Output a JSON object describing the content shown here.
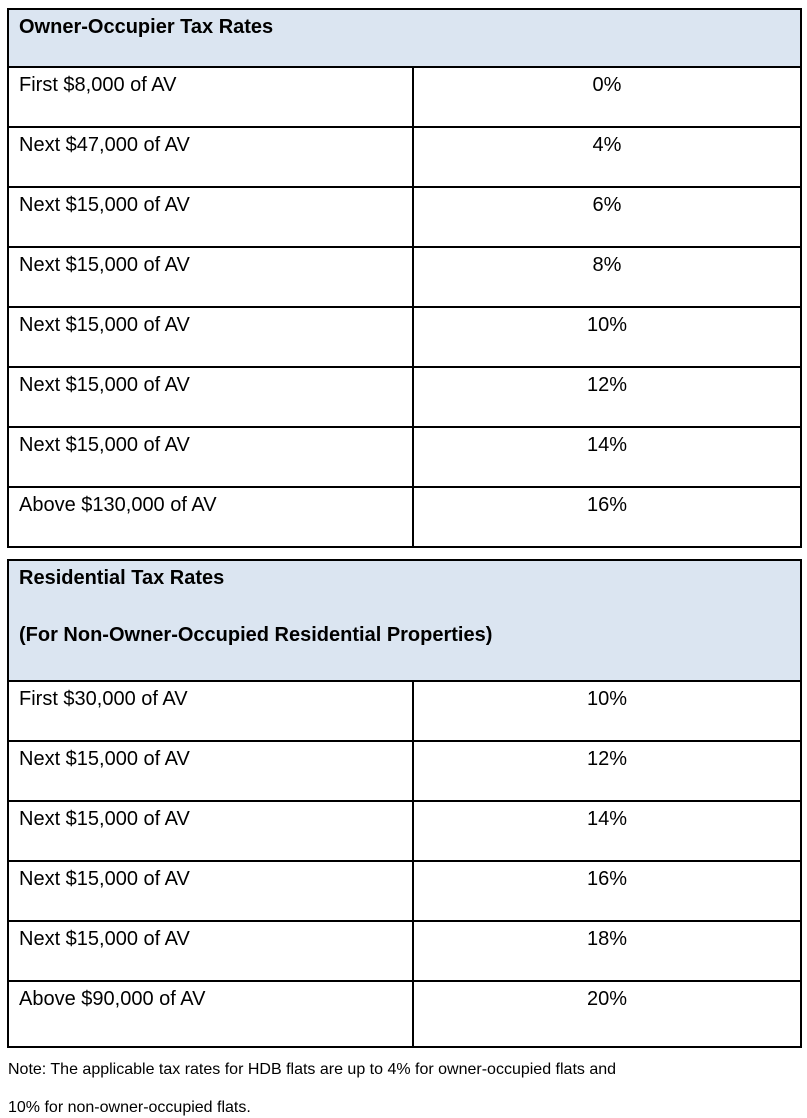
{
  "colors": {
    "header_bg": "#dbe5f1",
    "border": "#000000",
    "text": "#000000",
    "page_bg": "#ffffff"
  },
  "owner_table": {
    "title": "Owner-Occupier Tax Rates",
    "rows": [
      {
        "band": "First $8,000 of AV",
        "rate": "0%"
      },
      {
        "band": "Next $47,000 of AV",
        "rate": "4%"
      },
      {
        "band": "Next $15,000 of AV",
        "rate": "6%"
      },
      {
        "band": "Next $15,000 of AV",
        "rate": "8%"
      },
      {
        "band": "Next $15,000 of AV",
        "rate": "10%"
      },
      {
        "band": "Next $15,000 of AV",
        "rate": "12%"
      },
      {
        "band": "Next $15,000 of AV",
        "rate": "14%"
      },
      {
        "band": "Above $130,000 of AV",
        "rate": "16%"
      }
    ]
  },
  "residential_table": {
    "title_line1": "Residential Tax Rates",
    "title_line2": "(For Non-Owner-Occupied Residential Properties)",
    "rows": [
      {
        "band": "First $30,000 of AV",
        "rate": "10%"
      },
      {
        "band": "Next $15,000 of AV",
        "rate": "12%"
      },
      {
        "band": "Next $15,000 of AV",
        "rate": "14%"
      },
      {
        "band": "Next $15,000 of AV",
        "rate": "16%"
      },
      {
        "band": "Next $15,000 of AV",
        "rate": "18%"
      },
      {
        "band": "Above $90,000 of AV",
        "rate": "20%"
      }
    ]
  },
  "note": {
    "line1": "Note: The applicable tax rates for HDB flats are up to 4% for owner-occupied flats and",
    "line2": "10% for non-owner-occupied flats."
  }
}
